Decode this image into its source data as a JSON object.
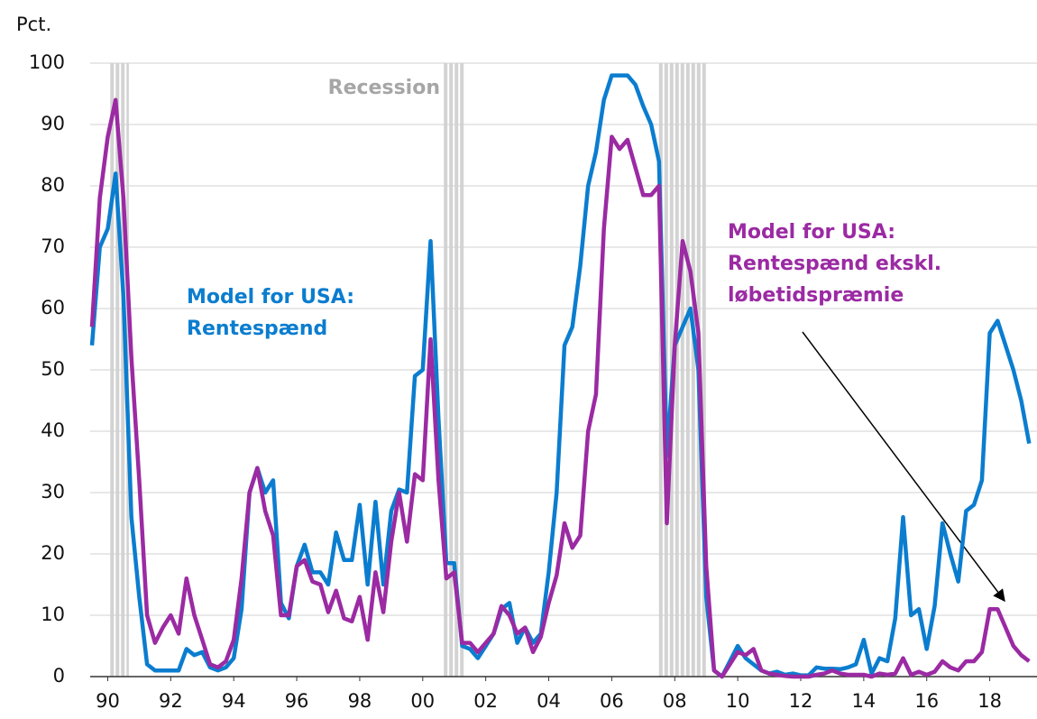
{
  "chart_data": {
    "type": "line",
    "y_unit_label": "Pct.",
    "recession_label": "Recession",
    "recessions": [
      [
        1990.58,
        1991.17
      ],
      [
        2001.17,
        2001.83
      ],
      [
        2008.0,
        2009.5
      ]
    ],
    "xlim": [
      1990,
      2020
    ],
    "xticks": [
      {
        "value": 1990.5,
        "label": "90"
      },
      {
        "value": 1992.5,
        "label": "92"
      },
      {
        "value": 1994.5,
        "label": "94"
      },
      {
        "value": 1996.5,
        "label": "96"
      },
      {
        "value": 1998.5,
        "label": "98"
      },
      {
        "value": 2000.5,
        "label": "00"
      },
      {
        "value": 2002.5,
        "label": "02"
      },
      {
        "value": 2004.5,
        "label": "04"
      },
      {
        "value": 2006.5,
        "label": "06"
      },
      {
        "value": 2008.5,
        "label": "08"
      },
      {
        "value": 2010.5,
        "label": "10"
      },
      {
        "value": 2012.5,
        "label": "12"
      },
      {
        "value": 2014.5,
        "label": "14"
      },
      {
        "value": 2016.5,
        "label": "16"
      },
      {
        "value": 2018.5,
        "label": "18"
      }
    ],
    "ylim": [
      0,
      100
    ],
    "yticks": [
      0,
      10,
      20,
      30,
      40,
      50,
      60,
      70,
      80,
      90,
      100
    ],
    "grid": true,
    "x": [
      1990,
      1990.25,
      1990.5,
      1990.75,
      1991,
      1991.25,
      1991.5,
      1991.75,
      1992,
      1992.25,
      1992.5,
      1992.75,
      1993,
      1993.25,
      1993.5,
      1993.75,
      1994,
      1994.25,
      1994.5,
      1994.75,
      1995,
      1995.25,
      1995.5,
      1995.75,
      1996,
      1996.25,
      1996.5,
      1996.75,
      1997,
      1997.25,
      1997.5,
      1997.75,
      1998,
      1998.25,
      1998.5,
      1998.75,
      1999,
      1999.25,
      1999.5,
      1999.75,
      2000,
      2000.25,
      2000.5,
      2000.75,
      2001,
      2001.25,
      2001.5,
      2001.75,
      2002,
      2002.25,
      2002.5,
      2002.75,
      2003,
      2003.25,
      2003.5,
      2003.75,
      2004,
      2004.25,
      2004.5,
      2004.75,
      2005,
      2005.25,
      2005.5,
      2005.75,
      2006,
      2006.25,
      2006.5,
      2006.75,
      2007,
      2007.25,
      2007.5,
      2007.75,
      2008,
      2008.25,
      2008.5,
      2008.75,
      2009,
      2009.25,
      2009.5,
      2009.75,
      2010,
      2010.25,
      2010.5,
      2010.75,
      2011,
      2011.25,
      2011.5,
      2011.75,
      2012,
      2012.25,
      2012.5,
      2012.75,
      2013,
      2013.25,
      2013.5,
      2013.75,
      2014,
      2014.25,
      2014.5,
      2014.75,
      2015,
      2015.25,
      2015.5,
      2015.75,
      2016,
      2016.25,
      2016.5,
      2016.75,
      2017,
      2017.25,
      2017.5,
      2017.75,
      2018,
      2018.25,
      2018.5,
      2018.75,
      2019,
      2019.25,
      2019.5,
      2019.75
    ],
    "series": [
      {
        "label_lines": [
          "Model for USA:",
          "Rentespænd"
        ],
        "color": "#0b7dcf",
        "values": [
          54,
          70,
          73,
          82,
          62,
          26,
          13,
          2,
          1,
          1,
          1,
          1,
          4.5,
          3.5,
          4,
          1.5,
          1,
          1.5,
          3,
          11,
          30,
          34,
          30,
          32,
          12,
          9.5,
          18,
          21.5,
          17,
          17,
          15,
          23.5,
          19,
          19,
          28,
          15,
          28.5,
          15,
          27,
          30.5,
          30,
          49,
          50,
          71,
          42,
          18.5,
          18.5,
          5,
          4.5,
          3,
          5,
          7,
          11,
          12,
          5.5,
          8,
          5.5,
          7,
          17,
          30,
          54,
          57,
          67,
          80,
          85.5,
          94,
          98,
          98,
          98,
          96.5,
          93,
          90,
          84,
          36,
          54,
          57,
          60,
          50,
          13,
          1,
          0,
          2.5,
          5,
          3,
          2,
          1,
          0.5,
          0.8,
          0.3,
          0.5,
          0.2,
          0.2,
          1.5,
          1.3,
          1.3,
          1.2,
          1.5,
          2,
          6,
          0.5,
          3,
          2.5,
          9.5,
          26,
          10,
          11,
          4.5,
          11.5,
          25,
          20,
          15.5,
          27,
          28,
          32,
          56,
          58,
          54,
          50,
          45,
          38
        ]
      },
      {
        "label_lines": [
          "Model for USA:",
          "Rentespænd ekskl.",
          "løbetidspræmie"
        ],
        "color": "#9b2aa3",
        "values": [
          57,
          78,
          88,
          94,
          78,
          52,
          32,
          10,
          5.5,
          8,
          10,
          7,
          16,
          10,
          6,
          2,
          1.5,
          2.5,
          6,
          16,
          30,
          34,
          27,
          23,
          10,
          10,
          18,
          19,
          15.5,
          15,
          10.5,
          14,
          9.5,
          9,
          13,
          6,
          17,
          10.5,
          22,
          30,
          22,
          33,
          32,
          55,
          32,
          16,
          17,
          5.5,
          5.5,
          4,
          5.5,
          7,
          11.5,
          10,
          7,
          8,
          4,
          6.5,
          12,
          16.5,
          25,
          21,
          23,
          40,
          46,
          73,
          88,
          86,
          87.5,
          83,
          78.5,
          78.5,
          80,
          25,
          54,
          71,
          66,
          56,
          18,
          1,
          0,
          2,
          4,
          3.5,
          4.5,
          1,
          0.5,
          0.3,
          0.1,
          0,
          0,
          0,
          0.3,
          0.5,
          1,
          0.5,
          0.3,
          0.3,
          0.3,
          0,
          0.5,
          0.3,
          0.5,
          3,
          0.3,
          0.8,
          0.3,
          0.8,
          2.5,
          1.5,
          1,
          2.5,
          2.5,
          4,
          11,
          11,
          8,
          5,
          3.5,
          2.5
        ]
      }
    ]
  }
}
